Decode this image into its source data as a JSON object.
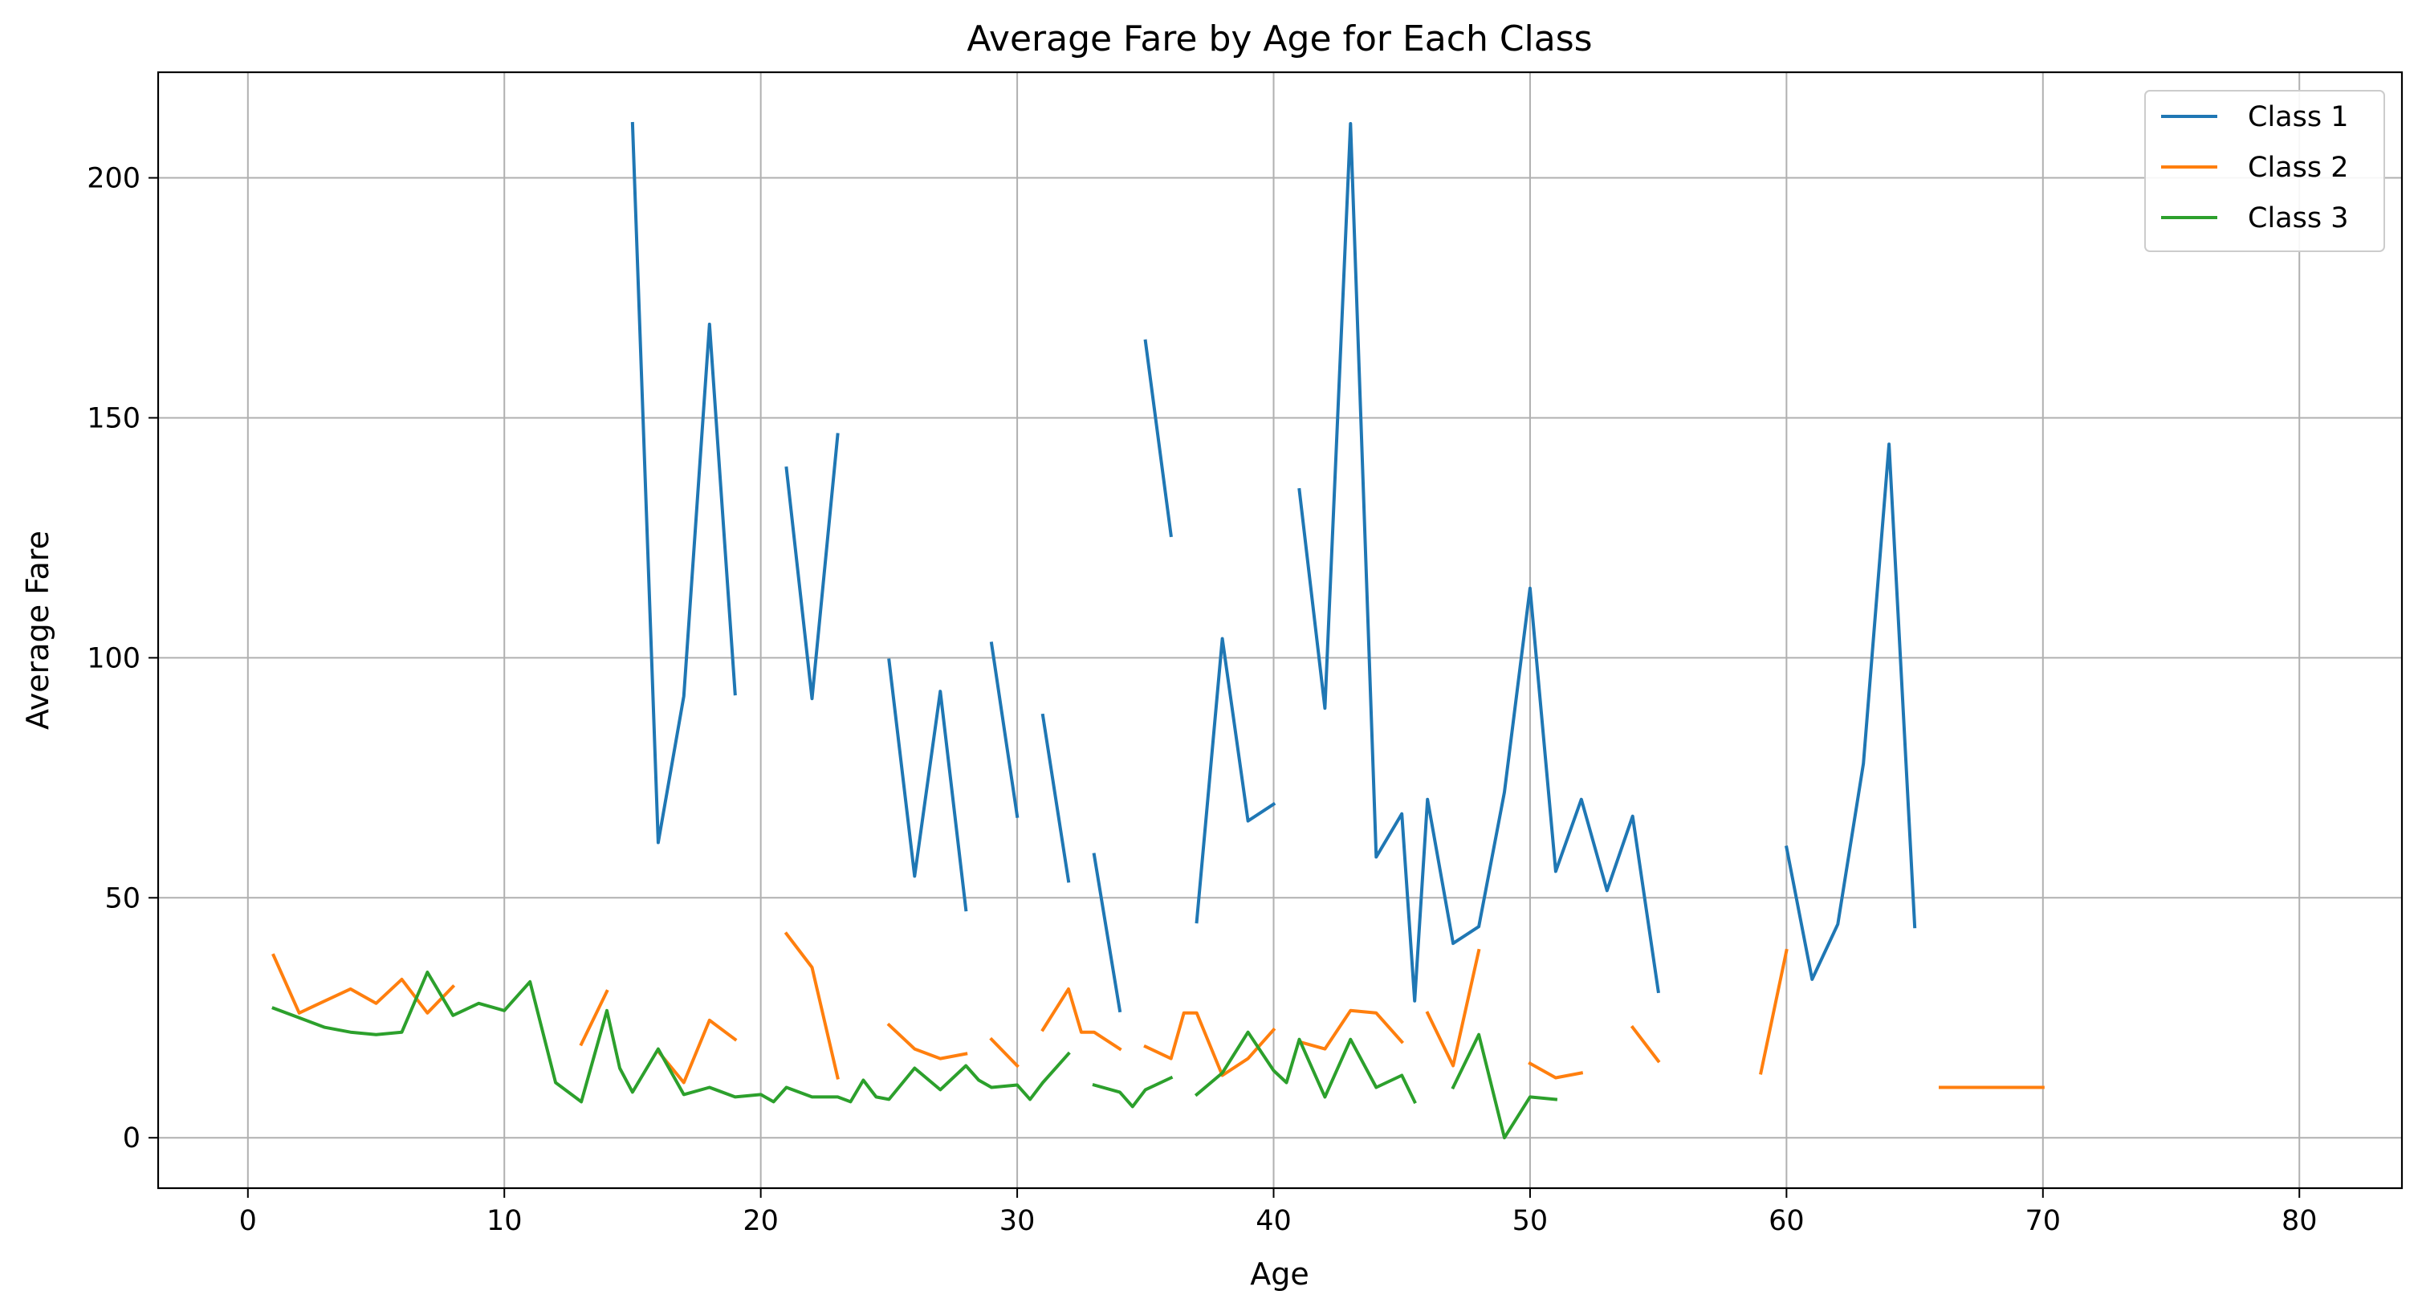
{
  "chart_data": {
    "type": "line",
    "title": "Average Fare by Age for Each Class",
    "xlabel": "Age",
    "ylabel": "Average Fare",
    "xlim": [
      -3.5,
      84
    ],
    "ylim": [
      -10.5,
      222
    ],
    "xticks": [
      0,
      10,
      20,
      30,
      40,
      50,
      60,
      70,
      80
    ],
    "yticks": [
      0,
      50,
      100,
      150,
      200
    ],
    "grid": true,
    "legend_position": "top-right",
    "series": [
      {
        "name": "Class 1",
        "color": "#1f77b4",
        "points": [
          [
            15,
            211.3
          ],
          [
            16,
            61.5
          ],
          [
            17,
            92
          ],
          [
            18,
            169.5
          ],
          [
            19,
            92.5
          ],
          [
            20,
            null
          ],
          [
            21,
            139.5
          ],
          [
            22,
            91.5
          ],
          [
            23,
            146.5
          ],
          [
            24,
            null
          ],
          [
            25,
            99.5
          ],
          [
            26,
            54.5
          ],
          [
            27,
            93
          ],
          [
            28,
            47.5
          ],
          [
            29,
            null
          ],
          [
            29,
            103
          ],
          [
            30,
            67
          ],
          [
            30.5,
            null
          ],
          [
            31,
            88
          ],
          [
            32,
            53.5
          ],
          [
            32.5,
            null
          ],
          [
            33,
            59
          ],
          [
            34,
            26.5
          ],
          [
            34.5,
            null
          ],
          [
            35,
            166
          ],
          [
            36,
            125.5
          ],
          [
            36.5,
            null
          ],
          [
            37,
            45
          ],
          [
            38,
            104
          ],
          [
            39,
            66
          ],
          [
            40,
            69.5
          ],
          [
            40.5,
            null
          ],
          [
            41,
            135
          ],
          [
            42,
            89.5
          ],
          [
            43,
            211.3
          ],
          [
            44,
            58.5
          ],
          [
            45,
            67.5
          ],
          [
            45.5,
            28.5
          ],
          [
            46,
            70.5
          ],
          [
            47,
            40.5
          ],
          [
            48,
            44
          ],
          [
            49,
            72
          ],
          [
            50,
            114.5
          ],
          [
            51,
            55.5
          ],
          [
            52,
            70.5
          ],
          [
            53,
            51.5
          ],
          [
            54,
            67
          ],
          [
            55,
            30.5
          ],
          [
            56,
            null
          ],
          [
            60,
            60.5
          ],
          [
            61,
            33
          ],
          [
            62,
            44.5
          ],
          [
            63,
            78
          ],
          [
            64,
            144.5
          ],
          [
            65,
            44
          ]
        ]
      },
      {
        "name": "Class 2",
        "color": "#ff7f0e",
        "points": [
          [
            1,
            38
          ],
          [
            2,
            26
          ],
          [
            3,
            28.5
          ],
          [
            4,
            31
          ],
          [
            5,
            28
          ],
          [
            6,
            33
          ],
          [
            7,
            26
          ],
          [
            8,
            31.5
          ],
          [
            9,
            null
          ],
          [
            13,
            19.5
          ],
          [
            14,
            30.5
          ],
          [
            14.5,
            null
          ],
          [
            15,
            null
          ],
          [
            16,
            18
          ],
          [
            17,
            11.5
          ],
          [
            18,
            24.5
          ],
          [
            19,
            20.5
          ],
          [
            20,
            null
          ],
          [
            21,
            42.5
          ],
          [
            22,
            35.5
          ],
          [
            23,
            12.5
          ],
          [
            24,
            null
          ],
          [
            25,
            23.5
          ],
          [
            26,
            18.5
          ],
          [
            27,
            16.5
          ],
          [
            28,
            17.5
          ],
          [
            28.5,
            null
          ],
          [
            29,
            20.5
          ],
          [
            30,
            15
          ],
          [
            30.5,
            null
          ],
          [
            31,
            22.5
          ],
          [
            32,
            31
          ],
          [
            32.5,
            22
          ],
          [
            33,
            22
          ],
          [
            34,
            18.5
          ],
          [
            34.5,
            null
          ],
          [
            35,
            19
          ],
          [
            36,
            16.5
          ],
          [
            36.5,
            26
          ],
          [
            37,
            26
          ],
          [
            38,
            13
          ],
          [
            39,
            16.5
          ],
          [
            40,
            22.5
          ],
          [
            40.5,
            null
          ],
          [
            41,
            20
          ],
          [
            42,
            18.5
          ],
          [
            43,
            26.5
          ],
          [
            44,
            26
          ],
          [
            45,
            20
          ],
          [
            45.5,
            null
          ],
          [
            46,
            26
          ],
          [
            47,
            15
          ],
          [
            48,
            39
          ],
          [
            48.5,
            null
          ],
          [
            50,
            15.5
          ],
          [
            51,
            12.5
          ],
          [
            52,
            13.5
          ],
          [
            53,
            null
          ],
          [
            54,
            23
          ],
          [
            55,
            16
          ],
          [
            56,
            null
          ],
          [
            59,
            13.5
          ],
          [
            60,
            39
          ],
          [
            61,
            null
          ],
          [
            66,
            10.5
          ],
          [
            67,
            10.5
          ],
          [
            68,
            10.5
          ],
          [
            69,
            10.5
          ],
          [
            70,
            10.5
          ]
        ]
      },
      {
        "name": "Class 3",
        "color": "#2ca02c",
        "points": [
          [
            1,
            27
          ],
          [
            2,
            25
          ],
          [
            3,
            23
          ],
          [
            4,
            22
          ],
          [
            5,
            21.5
          ],
          [
            6,
            22
          ],
          [
            7,
            34.5
          ],
          [
            8,
            25.5
          ],
          [
            9,
            28
          ],
          [
            10,
            26.5
          ],
          [
            11,
            32.5
          ],
          [
            12,
            11.5
          ],
          [
            13,
            7.5
          ],
          [
            14,
            26.5
          ],
          [
            14.5,
            14.5
          ],
          [
            15,
            9.5
          ],
          [
            16,
            18.5
          ],
          [
            17,
            9
          ],
          [
            18,
            10.5
          ],
          [
            19,
            8.5
          ],
          [
            20,
            9
          ],
          [
            20.5,
            7.5
          ],
          [
            21,
            10.5
          ],
          [
            22,
            8.5
          ],
          [
            23,
            8.5
          ],
          [
            23.5,
            7.5
          ],
          [
            24,
            12
          ],
          [
            24.5,
            8.5
          ],
          [
            25,
            8
          ],
          [
            26,
            14.5
          ],
          [
            27,
            10
          ],
          [
            28,
            15
          ],
          [
            28.5,
            12
          ],
          [
            29,
            10.5
          ],
          [
            30,
            11
          ],
          [
            30.5,
            8
          ],
          [
            31,
            11.5
          ],
          [
            32,
            17.5
          ],
          [
            32.5,
            null
          ],
          [
            33,
            11
          ],
          [
            34,
            9.5
          ],
          [
            34.5,
            6.5
          ],
          [
            35,
            10
          ],
          [
            36,
            12.5
          ],
          [
            36.5,
            null
          ],
          [
            37,
            9
          ],
          [
            38,
            13.5
          ],
          [
            39,
            22
          ],
          [
            40,
            14
          ],
          [
            40.5,
            11.5
          ],
          [
            41,
            20.5
          ],
          [
            42,
            8.5
          ],
          [
            43,
            20.5
          ],
          [
            44,
            10.5
          ],
          [
            45,
            13
          ],
          [
            45.5,
            7.5
          ],
          [
            46,
            null
          ],
          [
            47,
            10.5
          ],
          [
            48,
            21.5
          ],
          [
            49,
            0
          ],
          [
            50,
            8.5
          ],
          [
            51,
            8
          ]
        ]
      }
    ]
  }
}
